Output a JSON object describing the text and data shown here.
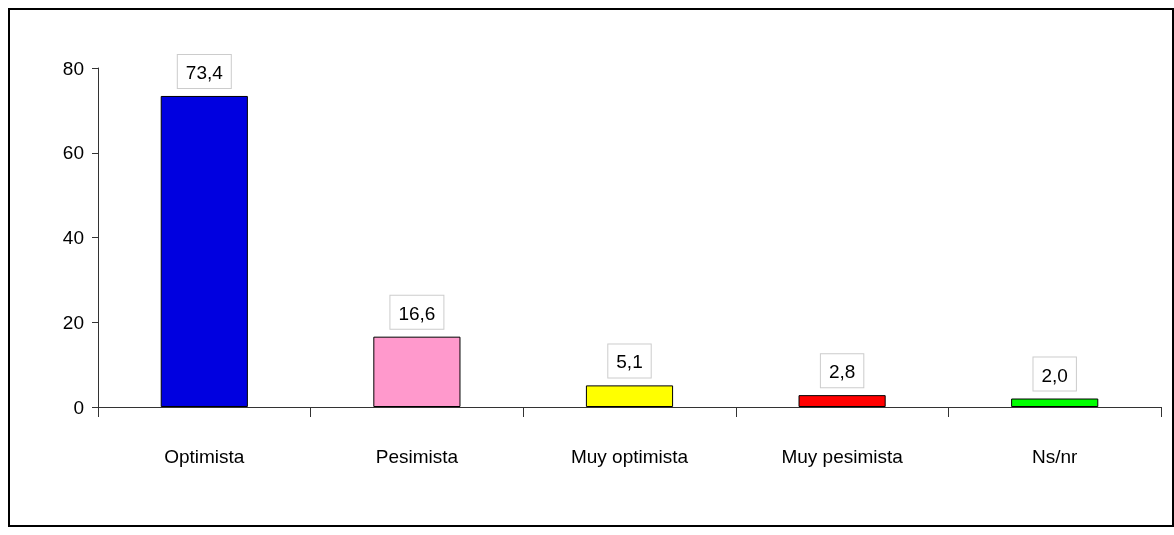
{
  "chart_data": {
    "type": "bar",
    "categories": [
      "Optimista",
      "Pesimista",
      "Muy optimista",
      "Muy pesimista",
      "Ns/nr"
    ],
    "values": [
      73.4,
      16.6,
      5.1,
      2.8,
      2.0
    ],
    "colors": [
      "#0000e0",
      "#ff99cc",
      "#ffff00",
      "#ff0000",
      "#00ff00"
    ],
    "value_labels": [
      "73,4",
      "16,6",
      "5,1",
      "2,8",
      "2,0"
    ],
    "ylim": [
      0,
      80
    ],
    "yticks": [
      0,
      20,
      40,
      60,
      80
    ],
    "grid": false
  }
}
